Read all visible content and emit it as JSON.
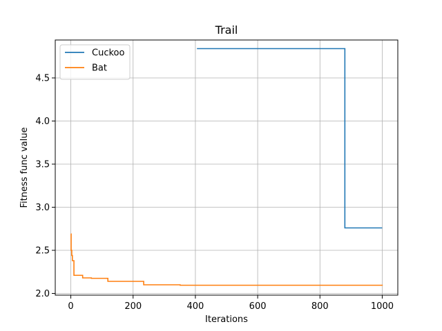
{
  "chart_data": {
    "type": "line",
    "title": "Trail",
    "xlabel": "Iterations",
    "ylabel": "Fitness func value",
    "xlim": [
      -50,
      1050
    ],
    "ylim": [
      1.98,
      4.94
    ],
    "xticks": [
      0,
      200,
      400,
      600,
      800,
      1000
    ],
    "yticks": [
      2.0,
      2.5,
      3.0,
      3.5,
      4.0,
      4.5
    ],
    "xtick_labels": [
      "0",
      "200",
      "400",
      "600",
      "800",
      "1000"
    ],
    "ytick_labels": [
      "2.0",
      "2.5",
      "3.0",
      "3.5",
      "4.0",
      "4.5"
    ],
    "grid": true,
    "legend_position": "top-left",
    "series": [
      {
        "name": "Cuckoo",
        "color": "#1f77b4",
        "step": true,
        "points": [
          [
            405,
            4.84
          ],
          [
            880,
            4.84
          ],
          [
            880,
            2.76
          ],
          [
            1000,
            2.76
          ]
        ]
      },
      {
        "name": "Bat",
        "color": "#ff7f0e",
        "step": true,
        "points": [
          [
            0,
            2.69
          ],
          [
            1,
            2.5
          ],
          [
            3,
            2.44
          ],
          [
            5,
            2.38
          ],
          [
            9,
            2.38
          ],
          [
            10,
            2.21
          ],
          [
            37,
            2.21
          ],
          [
            38,
            2.18
          ],
          [
            65,
            2.18
          ],
          [
            66,
            2.175
          ],
          [
            118,
            2.175
          ],
          [
            119,
            2.14
          ],
          [
            233,
            2.14
          ],
          [
            234,
            2.1
          ],
          [
            350,
            2.1
          ],
          [
            351,
            2.095
          ],
          [
            1000,
            2.09
          ]
        ]
      }
    ]
  }
}
